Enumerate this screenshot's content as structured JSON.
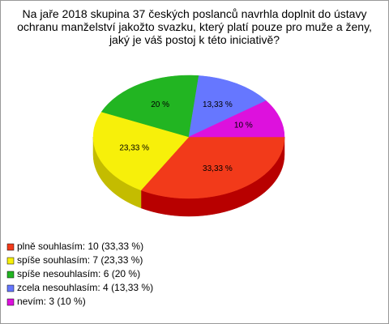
{
  "chart_data": {
    "type": "pie",
    "title": "Na jaře 2018 skupina 37 českých poslanců navrhla doplnit do ústavy ochranu manželství jakožto svazku, který platí pouze pro muže a ženy, jaký je váš postoj k této iniciativě?",
    "categories": [
      "plně souhlasím: 10 (33,33 %)",
      "spíše souhlasím: 7 (23,33 %)",
      "spíše nesouhlasím: 6 (20 %)",
      "zcela nesouhlasím: 4 (13,33 %)",
      "nevím: 3 (10 %)"
    ],
    "values": [
      33.33,
      23.33,
      20,
      13.33,
      10
    ],
    "value_labels": [
      "33,33 %",
      "23,33 %",
      "20 %",
      "13,33 %",
      "10 %"
    ],
    "colors": [
      "#f23a1a",
      "#f7f00a",
      "#22b522",
      "#6677ff",
      "#dd11dd"
    ],
    "side_colors": [
      "#b80000",
      "#c4bc00",
      "#168016",
      "#4050c0",
      "#a000a0"
    ]
  }
}
